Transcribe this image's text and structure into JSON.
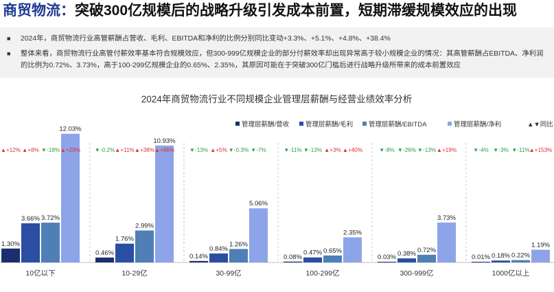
{
  "headline": {
    "prefix": "商贸物流：",
    "rest": "突破300亿规模后的战略升级引发成本前置，短期滞缓规模效应的出现"
  },
  "summary": {
    "bullets": [
      "2024年，商贸物流行业高管薪酬占营收、毛利、EBITDA和净利的比例分别同比变动+3.3%、+5.1%、+4.8%、+38.4%",
      "整体来看，商贸物流行业高管付薪效率基本符合规模效应，但300-999亿规模企业的部分付薪效率却出现异常高于较小规模企业的情况：其高管薪酬占EBITDA、净利润的比例为0.72%、3.73%，高于100-299亿规模企业的0.65%、2.35%，其原因可能在于突破300亿门槛后进行战略升级所带来的成本前置效应"
    ]
  },
  "chart_data": {
    "type": "bar",
    "title": "2024年商贸物流行业不同规模企业管理层薪酬与经营业绩效率分析",
    "legend_position": "top-right",
    "categories": [
      "10亿以下",
      "10-29亿",
      "30-99亿",
      "100-299亿",
      "300-999亿",
      "1000亿以上"
    ],
    "series": [
      {
        "name": "管理层薪酬/营收",
        "color": "#1a2f6e",
        "values": [
          1.3,
          0.46,
          0.14,
          0.08,
          0.03,
          0.01
        ],
        "labels": [
          "1.30%",
          "0.46%",
          "0.14%",
          "0.08%",
          "0.03%",
          "0.01%"
        ],
        "yoy": [
          "▲+12%",
          "▼-0.2%",
          "▼-13%",
          "▼-11%",
          "▼-8%",
          "▼-4%"
        ]
      },
      {
        "name": "管理层薪酬/毛利",
        "color": "#2b4ea3",
        "values": [
          3.66,
          1.76,
          0.84,
          0.47,
          0.38,
          0.18
        ],
        "labels": [
          "3.66%",
          "1.76%",
          "0.84%",
          "0.47%",
          "0.38%",
          "0.18%"
        ],
        "yoy": [
          "▲+8%",
          "▲+11%",
          "▲+5%",
          "▼-13%",
          "▼-26%",
          "▼-3%"
        ]
      },
      {
        "name": "管理层薪酬/EBITDA",
        "color": "#4f7fb5",
        "values": [
          3.72,
          2.99,
          1.26,
          0.65,
          0.72,
          0.22
        ],
        "labels": [
          "3.72%",
          "2.99%",
          "1.26%",
          "0.65%",
          "0.72%",
          "0.22%"
        ],
        "yoy": [
          "▼-18%",
          "▲+38%",
          "▼-0.3%",
          "▲+3%",
          "▼-13%",
          "▼-11%"
        ]
      },
      {
        "name": "管理层薪酬/净利",
        "color": "#8da4e8",
        "values": [
          12.03,
          10.93,
          5.06,
          2.35,
          3.73,
          1.19
        ],
        "labels": [
          "12.03%",
          "10.93%",
          "5.06%",
          "2.35%",
          "3.73%",
          "1.19%"
        ],
        "yoy": [
          "▲+29%",
          "▲+96%",
          "▼-7%",
          "▲+40%",
          "▲+19%",
          "▲+153%"
        ]
      }
    ],
    "yoy_legend": "▲▼同比",
    "up_color": "#e03030",
    "down_color": "#2e9e4a",
    "ylim": [
      0,
      14
    ]
  }
}
